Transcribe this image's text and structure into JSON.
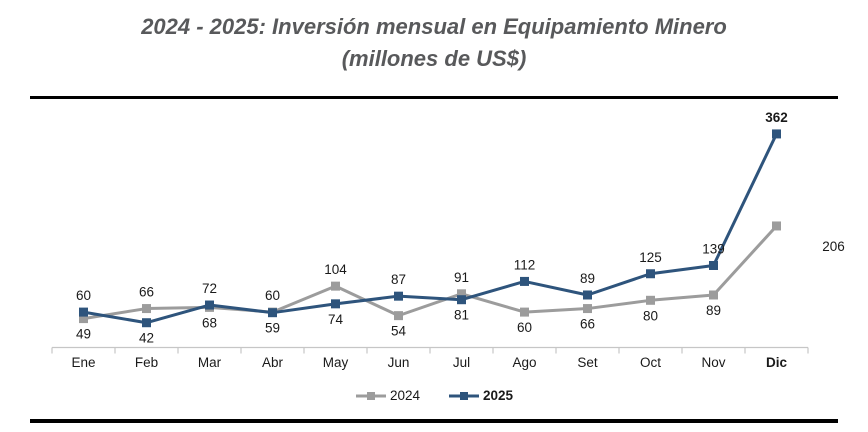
{
  "title": {
    "line1": "2024 - 2025: Inversión mensual en Equipamiento Minero",
    "line2": "(millones de US$)"
  },
  "chart_data": {
    "type": "line",
    "title": "2024 - 2025: Inversión mensual en Equipamiento Minero (millones de US$)",
    "categories": [
      "Ene",
      "Feb",
      "Mar",
      "Abr",
      "May",
      "Jun",
      "Jul",
      "Ago",
      "Set",
      "Oct",
      "Nov",
      "Dic"
    ],
    "bold_categories": [
      "Dic"
    ],
    "series": [
      {
        "name": "2024",
        "color": "#9c9c9c",
        "values": [
          49,
          66,
          68,
          60,
          104,
          54,
          91,
          60,
          66,
          80,
          89,
          206
        ],
        "label_pos": [
          "below",
          "above",
          "below",
          "above",
          "above",
          "below",
          "above",
          "below",
          "below",
          "below",
          "below",
          "right"
        ],
        "bold_labels": []
      },
      {
        "name": "2025",
        "color": "#2e547c",
        "values": [
          60,
          42,
          72,
          59,
          74,
          87,
          81,
          112,
          89,
          125,
          139,
          362
        ],
        "label_pos": [
          "above",
          "below",
          "above",
          "below",
          "below",
          "above",
          "below",
          "above",
          "above",
          "above",
          "above",
          "above"
        ],
        "bold_labels": [
          11
        ]
      }
    ],
    "ylim": [
      0,
      420
    ],
    "grid": false,
    "y_axis_visible": false,
    "legend_position": "bottom",
    "axis_color": "#c6c6c6",
    "label_color": "#1a1a1a",
    "marker": "square"
  },
  "legend": {
    "items": [
      {
        "label": "2024",
        "color": "#9c9c9c",
        "bold": false
      },
      {
        "label": "2025",
        "color": "#2e547c",
        "bold": true
      }
    ]
  }
}
